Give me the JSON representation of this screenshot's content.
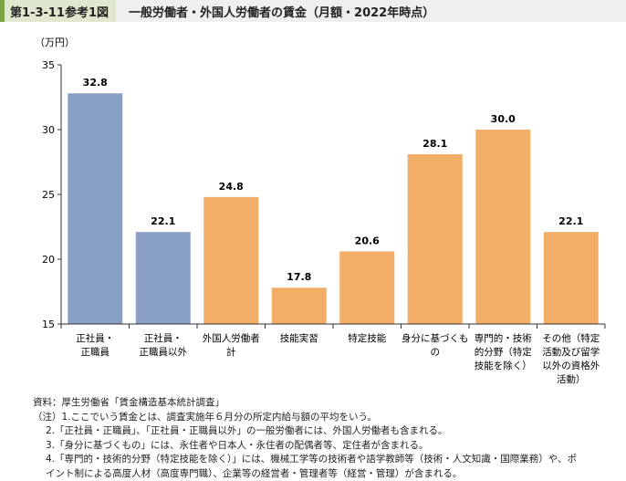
{
  "header": {
    "figure_number": "第1-3-11参考1図",
    "title": "一般労働者・外国人労働者の賃金（月額・2022年時点）"
  },
  "chart_data": {
    "type": "bar",
    "title": "一般労働者・外国人労働者の賃金（月額・2022年時点）",
    "ylabel": "（万円）",
    "ylim": [
      15,
      35
    ],
    "yticks": [
      15,
      20,
      25,
      30,
      35
    ],
    "categories": [
      [
        "正社員・",
        "正職員"
      ],
      [
        "正社員・",
        "正職員以外"
      ],
      [
        "外国人労働者",
        "計"
      ],
      [
        "技能実習"
      ],
      [
        "特定技能"
      ],
      [
        "身分に基づくも",
        "の"
      ],
      [
        "専門的・技術",
        "的分野（特定",
        "技能を除く）"
      ],
      [
        "その他（特定",
        "活動及び留学",
        "以外の資格外",
        "活動）"
      ]
    ],
    "values": [
      32.8,
      22.1,
      24.8,
      17.8,
      20.6,
      28.1,
      30.0,
      22.1
    ],
    "value_labels": [
      "32.8",
      "22.1",
      "24.8",
      "17.8",
      "20.6",
      "28.1",
      "30.0",
      "22.1"
    ],
    "groups": [
      "general",
      "general",
      "foreign",
      "foreign",
      "foreign",
      "foreign",
      "foreign",
      "foreign"
    ],
    "colors": {
      "general": "#8a9fc4",
      "foreign": "#f2ae66"
    },
    "grid": false
  },
  "notes": {
    "source": "資料：厚生労働省「賃金構造基本統計調査」",
    "lines": [
      "（注）1.ここでいう賃金とは、調査実施年６月分の所定内給与額の平均をいう。",
      "2.「正社員・正職員」、「正社員・正職員以外」の一般労働者には、外国人労働者も含まれる。",
      "3.「身分に基づくもの」には、永住者や日本人・永住者の配偶者等、定住者が含まれる。",
      "4.「専門的・技術的分野（特定技能を除く）」には、機械工学等の技術者や語学教師等（技術・人文知識・国際業務）や、ポ",
      "イント制による高度人材（高度専門職）、企業等の経営者・管理者等（経営・管理）が含まれる。"
    ]
  }
}
